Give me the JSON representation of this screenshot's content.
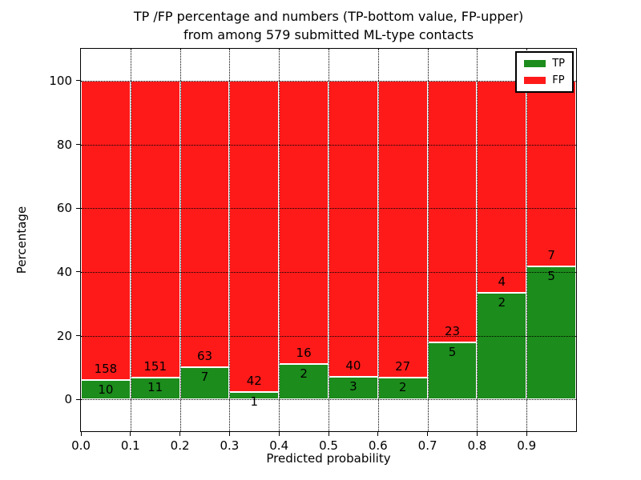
{
  "figure": {
    "title_line1": "TP /FP percentage and numbers (TP-bottom value, FP-upper)",
    "title_line2": "from among 579 submitted ML-type contacts"
  },
  "chart_data": {
    "type": "bar",
    "stacked": true,
    "normalized": "each bin stacked to 100 percent",
    "title": "TP /FP percentage and numbers (TP-bottom value, FP-upper)\nfrom among 579 submitted ML-type contacts",
    "xlabel": "Predicted probability",
    "ylabel": "Percentage",
    "total_submitted": 579,
    "categories": [
      "0.0-0.1",
      "0.1-0.2",
      "0.2-0.3",
      "0.3-0.4",
      "0.4-0.5",
      "0.5-0.6",
      "0.6-0.7",
      "0.7-0.8",
      "0.8-0.9",
      "0.9-1.0"
    ],
    "bin_edges": [
      0.0,
      0.1,
      0.2,
      0.3,
      0.4,
      0.5,
      0.6,
      0.7,
      0.8,
      0.9,
      1.0
    ],
    "series": [
      {
        "name": "TP",
        "color": "#1c8c1c",
        "counts": [
          10,
          11,
          7,
          1,
          2,
          3,
          2,
          5,
          2,
          5
        ],
        "percent": [
          5.95,
          6.79,
          10.0,
          2.33,
          11.11,
          6.98,
          6.9,
          17.86,
          33.33,
          41.67
        ]
      },
      {
        "name": "FP",
        "color": "#ff1a1a",
        "counts": [
          158,
          151,
          63,
          42,
          16,
          40,
          27,
          23,
          4,
          7
        ],
        "percent": [
          94.05,
          93.21,
          90.0,
          97.67,
          88.89,
          93.02,
          93.1,
          82.14,
          66.67,
          58.33
        ]
      }
    ],
    "xticks": [
      0.0,
      0.1,
      0.2,
      0.3,
      0.4,
      0.5,
      0.6,
      0.7,
      0.8,
      0.9
    ],
    "xtick_labels": [
      "0.0",
      "0.1",
      "0.2",
      "0.3",
      "0.4",
      "0.5",
      "0.6",
      "0.7",
      "0.8",
      "0.9"
    ],
    "yticks": [
      0,
      20,
      40,
      60,
      80,
      100
    ],
    "ytick_labels": [
      "0",
      "20",
      "40",
      "60",
      "80",
      "100"
    ],
    "xlim": [
      0.0,
      1.0
    ],
    "ylim": [
      -10,
      110
    ],
    "grid": {
      "style": "dotted",
      "color": "#000000"
    },
    "bar_edge_color": "#ffffff",
    "legend": {
      "position": "upper right",
      "entries": [
        "TP",
        "FP"
      ]
    }
  }
}
